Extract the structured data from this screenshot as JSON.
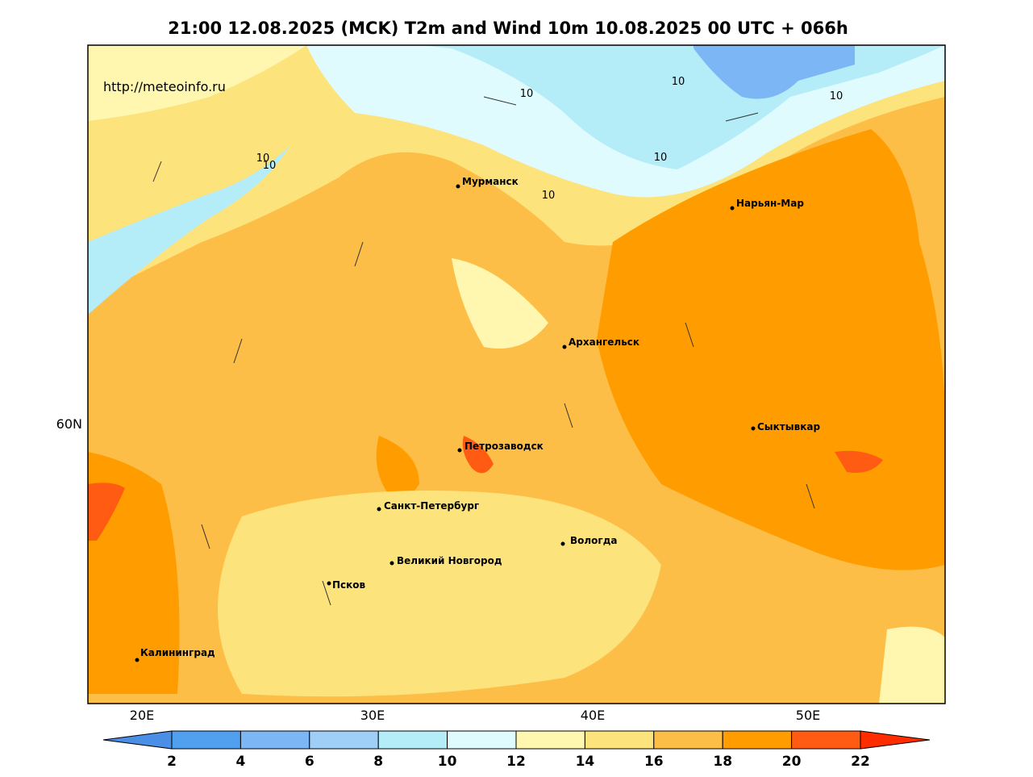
{
  "title": "21:00 12.08.2025 (MCK) T2m and Wind 10m 10.08.2025 00 UTC + 066h",
  "watermark": "http://meteoinfo.ru",
  "cities": [
    "Мурманск",
    "Нарьян-Мар",
    "Архангельск",
    "Сыктывкар",
    "Петрозаводск",
    "Санкт-Петербург",
    "Вологда",
    "Великий Новгород",
    "Псков",
    "Калининград"
  ],
  "x_labels": [
    "20E",
    "30E",
    "40E",
    "50E"
  ],
  "y_labels": [
    "60N"
  ],
  "contour_labels": [
    "10",
    "10",
    "10",
    "10",
    "10",
    "10",
    "10"
  ],
  "colorbar": {
    "ticks": [
      2,
      4,
      6,
      8,
      10,
      12,
      14,
      16,
      18,
      20,
      22
    ],
    "colors": [
      "#4a8ee6",
      "#51a0f0",
      "#7cb6f4",
      "#9fcef6",
      "#b4ecf8",
      "#e0fbfd",
      "#fff7b0",
      "#fde37c",
      "#fdbe47",
      "#ff9d00",
      "#ff5b12",
      "#ff2c00"
    ]
  }
}
